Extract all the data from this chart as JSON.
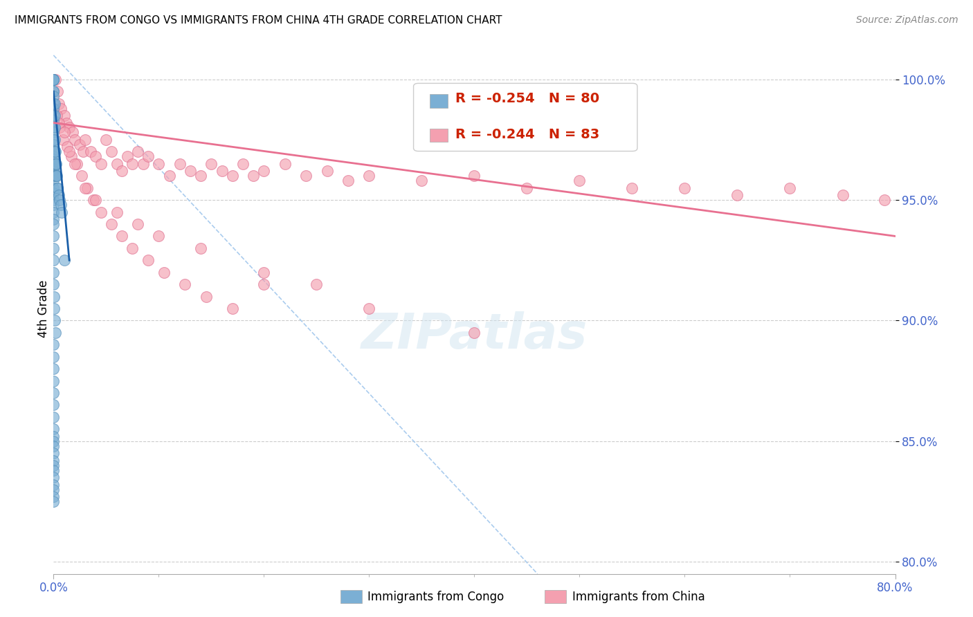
{
  "title": "IMMIGRANTS FROM CONGO VS IMMIGRANTS FROM CHINA 4TH GRADE CORRELATION CHART",
  "source": "Source: ZipAtlas.com",
  "ylabel": "4th Grade",
  "r1": -0.254,
  "n1": 80,
  "r2": -0.244,
  "n2": 83,
  "legend_label1": "Immigrants from Congo",
  "legend_label2": "Immigrants from China",
  "congo_color": "#7bafd4",
  "congo_edge_color": "#5590bb",
  "china_color": "#f4a0b0",
  "china_edge_color": "#e07090",
  "congo_line_color": "#1a5fa8",
  "china_line_color": "#e87090",
  "ref_line_color": "#aaccee",
  "xlim": [
    0.0,
    80.0
  ],
  "ylim": [
    79.5,
    101.5
  ],
  "x_tick_labels": [
    "0.0%",
    "80.0%"
  ],
  "x_tick_positions": [
    0.0,
    80.0
  ],
  "y_ticks": [
    80.0,
    85.0,
    90.0,
    95.0,
    100.0
  ],
  "tick_color": "#4466cc",
  "title_fontsize": 11,
  "source_fontsize": 10,
  "congo_line_x0": 0.0,
  "congo_line_y0": 99.5,
  "congo_line_x1": 1.5,
  "congo_line_y1": 92.5,
  "china_line_x0": 0.0,
  "china_line_y0": 98.2,
  "china_line_x1": 80.0,
  "china_line_y1": 93.5,
  "ref_line_x0": 0.0,
  "ref_line_y0": 101.0,
  "ref_line_x1": 46.0,
  "ref_line_y1": 79.5,
  "congo_scatter_x": [
    0.0,
    0.0,
    0.0,
    0.0,
    0.0,
    0.0,
    0.0,
    0.0,
    0.0,
    0.0,
    0.0,
    0.0,
    0.0,
    0.0,
    0.0,
    0.0,
    0.0,
    0.0,
    0.0,
    0.0,
    0.0,
    0.0,
    0.0,
    0.0,
    0.0,
    0.0,
    0.0,
    0.0,
    0.0,
    0.0,
    0.1,
    0.1,
    0.1,
    0.1,
    0.1,
    0.15,
    0.15,
    0.2,
    0.2,
    0.2,
    0.25,
    0.25,
    0.3,
    0.35,
    0.4,
    0.5,
    0.6,
    0.7,
    0.8,
    1.0,
    0.0,
    0.0,
    0.0,
    0.0,
    0.0,
    0.0,
    0.05,
    0.05,
    0.1,
    0.15,
    0.0,
    0.0,
    0.0,
    0.0,
    0.0,
    0.0,
    0.0,
    0.0,
    0.0,
    0.0,
    0.0,
    0.0,
    0.0,
    0.0,
    0.0,
    0.0,
    0.0,
    0.0,
    0.0,
    0.0
  ],
  "congo_scatter_y": [
    100.0,
    100.0,
    100.0,
    100.0,
    100.0,
    99.5,
    99.5,
    99.3,
    99.0,
    98.8,
    98.5,
    98.3,
    98.0,
    97.8,
    97.5,
    97.3,
    97.0,
    96.8,
    96.7,
    96.5,
    96.3,
    96.2,
    96.0,
    95.8,
    95.5,
    95.3,
    95.0,
    94.8,
    94.5,
    94.2,
    99.0,
    98.5,
    98.0,
    97.5,
    97.0,
    96.5,
    96.0,
    97.0,
    96.5,
    96.0,
    96.5,
    96.0,
    96.0,
    95.5,
    95.5,
    95.2,
    95.0,
    94.8,
    94.5,
    92.5,
    94.0,
    93.5,
    93.0,
    92.5,
    92.0,
    91.5,
    91.0,
    90.5,
    90.0,
    89.5,
    89.0,
    88.5,
    88.0,
    87.5,
    87.0,
    86.5,
    86.0,
    85.5,
    85.2,
    85.0,
    84.8,
    84.5,
    84.2,
    84.0,
    83.8,
    83.5,
    83.2,
    83.0,
    82.7,
    82.5
  ],
  "china_scatter_x": [
    0.2,
    0.4,
    0.5,
    0.7,
    1.0,
    1.2,
    1.5,
    1.8,
    2.0,
    2.5,
    2.8,
    3.0,
    3.5,
    4.0,
    4.5,
    5.0,
    5.5,
    6.0,
    6.5,
    7.0,
    7.5,
    8.0,
    8.5,
    9.0,
    10.0,
    11.0,
    12.0,
    13.0,
    14.0,
    15.0,
    16.0,
    17.0,
    18.0,
    19.0,
    20.0,
    22.0,
    24.0,
    26.0,
    28.0,
    30.0,
    35.0,
    40.0,
    45.0,
    50.0,
    55.0,
    60.0,
    65.0,
    70.0,
    75.0,
    79.0,
    0.3,
    0.6,
    0.9,
    1.3,
    1.7,
    2.2,
    2.7,
    3.2,
    3.8,
    4.5,
    5.5,
    6.5,
    7.5,
    9.0,
    10.5,
    12.5,
    14.5,
    17.0,
    20.0,
    25.0,
    0.5,
    1.0,
    1.5,
    2.0,
    3.0,
    4.0,
    6.0,
    8.0,
    10.0,
    14.0,
    20.0,
    30.0,
    40.0
  ],
  "china_scatter_y": [
    100.0,
    99.5,
    99.0,
    98.8,
    98.5,
    98.2,
    98.0,
    97.8,
    97.5,
    97.3,
    97.0,
    97.5,
    97.0,
    96.8,
    96.5,
    97.5,
    97.0,
    96.5,
    96.2,
    96.8,
    96.5,
    97.0,
    96.5,
    96.8,
    96.5,
    96.0,
    96.5,
    96.2,
    96.0,
    96.5,
    96.2,
    96.0,
    96.5,
    96.0,
    96.2,
    96.5,
    96.0,
    96.2,
    95.8,
    96.0,
    95.8,
    96.0,
    95.5,
    95.8,
    95.5,
    95.5,
    95.2,
    95.5,
    95.2,
    95.0,
    98.5,
    98.0,
    97.5,
    97.2,
    96.8,
    96.5,
    96.0,
    95.5,
    95.0,
    94.5,
    94.0,
    93.5,
    93.0,
    92.5,
    92.0,
    91.5,
    91.0,
    90.5,
    92.0,
    91.5,
    98.2,
    97.8,
    97.0,
    96.5,
    95.5,
    95.0,
    94.5,
    94.0,
    93.5,
    93.0,
    91.5,
    90.5,
    89.5
  ]
}
